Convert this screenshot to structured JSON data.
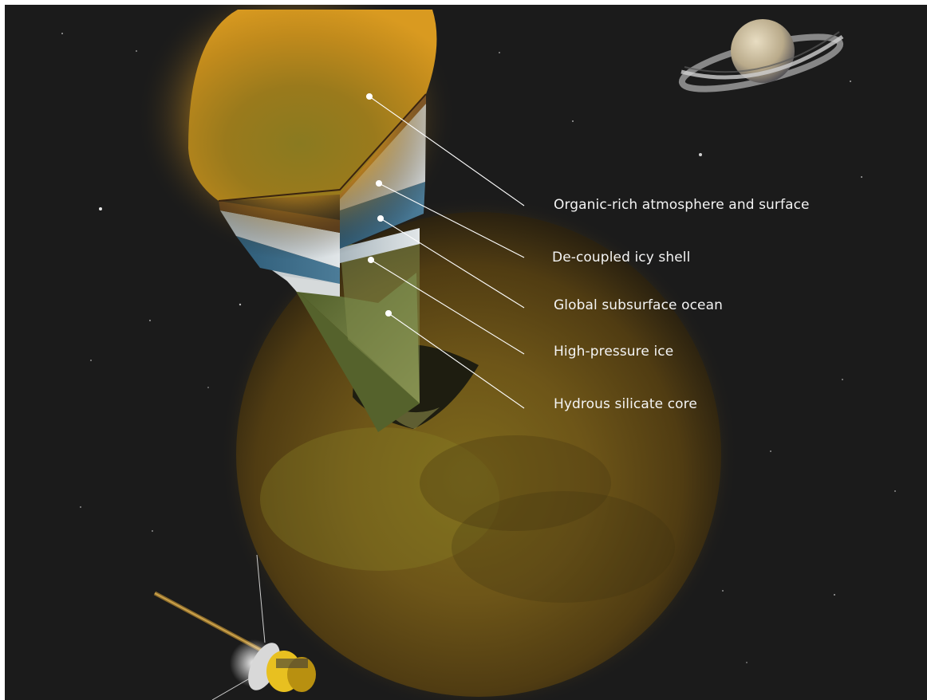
{
  "layers": [
    {
      "id": "atmosphere",
      "label": "Organic-rich atmosphere and surface"
    },
    {
      "id": "icy-shell",
      "label": "De-coupled icy shell"
    },
    {
      "id": "ocean",
      "label": "Global subsurface ocean"
    },
    {
      "id": "hp-ice",
      "label": "High-pressure ice"
    },
    {
      "id": "core",
      "label": "Hydrous silicate core"
    }
  ],
  "colors": {
    "space": "#1b1b1b",
    "titan_haze": "#b8861f",
    "ocean": "#3e6f8c",
    "ice": "#cfd8dc",
    "core": "#6f7a3c",
    "label_text": "#f4f4f4",
    "leader_line": "#ffffff"
  },
  "icons": [
    "saturn-icon",
    "cassini-spacecraft-icon"
  ]
}
